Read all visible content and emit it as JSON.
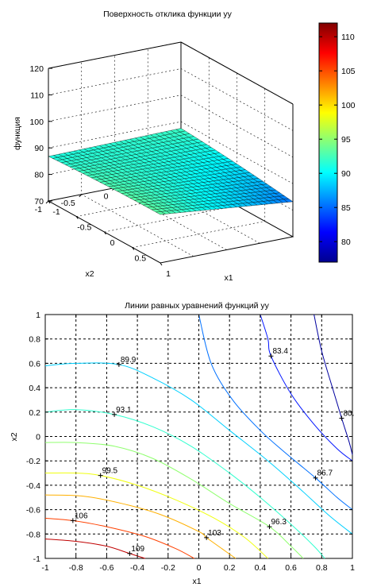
{
  "chart_data": [
    {
      "type": "surface",
      "title": "Поверхность отклика функции yy",
      "xlabel": "x1",
      "ylabel": "x2",
      "zlabel": "функция",
      "xlim": [
        -1,
        1
      ],
      "ylim": [
        -1,
        1
      ],
      "zlim": [
        70,
        120
      ],
      "x_ticks": [
        "-1",
        "-0.5",
        "0",
        "0.5",
        "1"
      ],
      "y_ticks": [
        "-1",
        "-0.5",
        "0",
        "0.5",
        "1"
      ],
      "z_ticks": [
        "70",
        "80",
        "90",
        "100",
        "110",
        "120"
      ],
      "colorbar": {
        "range": [
          77,
          112
        ],
        "ticks": [
          "80",
          "85",
          "90",
          "95",
          "100",
          "105",
          "110"
        ],
        "colormap": "jet"
      }
    },
    {
      "type": "contour",
      "title": "Линии равных уравнений функций yy",
      "xlabel": "x1",
      "ylabel": "x2",
      "xlim": [
        -1,
        1
      ],
      "ylim": [
        -1,
        1
      ],
      "x_ticks": [
        "-1",
        "-0.8",
        "-0.6",
        "-0.4",
        "-0.2",
        "0",
        "0.2",
        "0.4",
        "0.6",
        "0.8",
        "1"
      ],
      "y_ticks": [
        "-1",
        "-0.8",
        "-0.6",
        "-0.4",
        "-0.2",
        "0",
        "0.2",
        "0.4",
        "0.6",
        "0.8",
        "1"
      ],
      "grid": true,
      "levels": [
        {
          "value": 80,
          "label": "80.",
          "label_at": [
            0.93,
            0.15
          ],
          "color": "#00009f"
        },
        {
          "value": 83.4,
          "label": "83.4",
          "label_at": [
            0.47,
            0.66
          ],
          "color": "#0014ff"
        },
        {
          "value": 86.7,
          "label": "86.7",
          "label_at": [
            0.76,
            -0.34
          ],
          "color": "#0070ff"
        },
        {
          "value": 89.9,
          "label": "89.9",
          "label_at": [
            -0.52,
            0.59
          ],
          "color": "#00d0ff"
        },
        {
          "value": 93.1,
          "label": "93.1",
          "label_at": [
            -0.55,
            0.18
          ],
          "color": "#30ffcf"
        },
        {
          "value": 96.3,
          "label": "96.3",
          "label_at": [
            0.46,
            -0.74
          ],
          "color": "#90ff6f"
        },
        {
          "value": 99.5,
          "label": "99.5",
          "label_at": [
            -0.64,
            -0.32
          ],
          "color": "#f0ff0f"
        },
        {
          "value": 103,
          "label": "103",
          "label_at": [
            0.05,
            -0.83
          ],
          "color": "#ffb000"
        },
        {
          "value": 106,
          "label": "106",
          "label_at": [
            -0.82,
            -0.69
          ],
          "color": "#ff4000"
        },
        {
          "value": 109,
          "label": "109",
          "label_at": [
            -0.45,
            -0.96
          ],
          "color": "#c00000"
        }
      ]
    }
  ]
}
